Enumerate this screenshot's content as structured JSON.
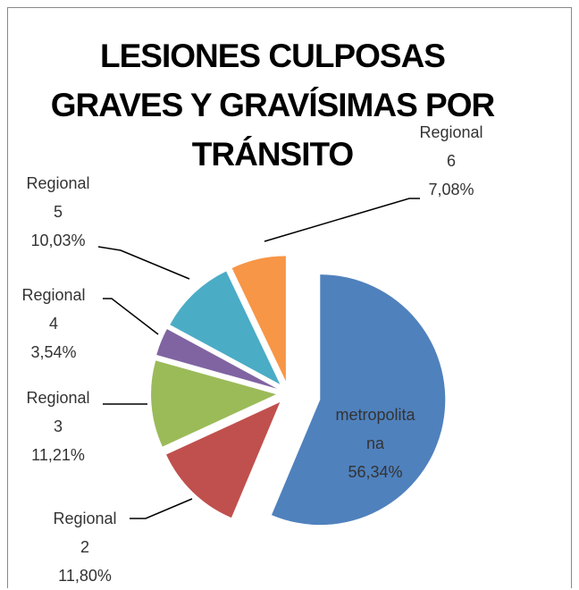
{
  "chart_data": {
    "type": "pie",
    "title": "LESIONES CULPOSAS GRAVES Y GRAVÍSIMAS POR TRÁNSITO",
    "categories": [
      "metropolitana",
      "Regional 2",
      "Regional 3",
      "Regional 4",
      "Regional 5",
      "Regional 6"
    ],
    "values": [
      56.34,
      11.8,
      11.21,
      3.54,
      10.03,
      7.08
    ],
    "value_labels": [
      "56,34%",
      "11,80%",
      "11,21%",
      "3,54%",
      "10,03%",
      "7,08%"
    ],
    "colors": [
      "#4F81BD",
      "#C0504D",
      "#9BBB59",
      "#8064A2",
      "#4BACC6",
      "#F79646"
    ]
  }
}
